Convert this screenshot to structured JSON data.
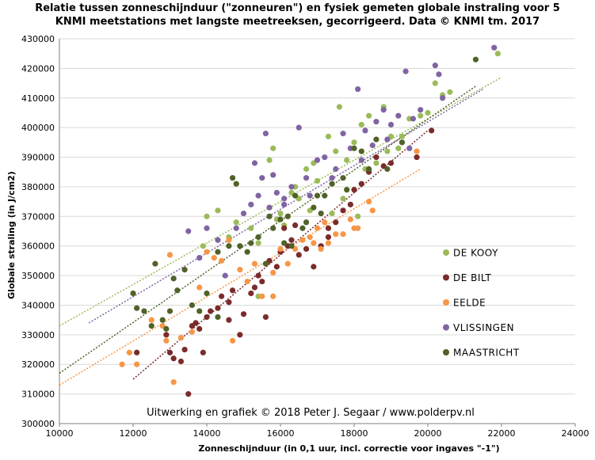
{
  "chart_data": {
    "type": "scatter",
    "title_line1": "Relatie  tussen  zonneschijnduur  (\"zonneuren\")  en fysiek gemeten globale instraling voor 5",
    "title_line2": "KNMI  meetstations met langste meetreeksen, gecorrigeerd. Data © KNMI  tm. 2017",
    "xlabel": "Zonneschijnduur (in 0,1 uur, incl. correctie voor ingaves \"-1\")",
    "ylabel": "Globale straling (in J/cm2)",
    "xlim": [
      10000,
      24000
    ],
    "ylim": [
      300000,
      430000
    ],
    "xticks": [
      10000,
      12000,
      14000,
      16000,
      18000,
      20000,
      22000,
      24000
    ],
    "yticks": [
      300000,
      310000,
      320000,
      330000,
      340000,
      350000,
      360000,
      370000,
      380000,
      390000,
      400000,
      410000,
      420000,
      430000
    ],
    "grid": "horizontal",
    "legend_position": "right",
    "credit": "Uitwerking  en grafiek © 2018 Peter J. Segaar / www.polderpv.nl",
    "series": [
      {
        "name": "DE KOOY",
        "color": "#9bbb59",
        "trend": [
          [
            10000,
            333000
          ],
          [
            22000,
            417000
          ]
        ],
        "points": [
          [
            13900,
            360000
          ],
          [
            14000,
            370000
          ],
          [
            14300,
            372000
          ],
          [
            14600,
            363000
          ],
          [
            14800,
            368000
          ],
          [
            15200,
            366000
          ],
          [
            15400,
            361000
          ],
          [
            15700,
            389000
          ],
          [
            15800,
            393000
          ],
          [
            15900,
            369000
          ],
          [
            16000,
            371000
          ],
          [
            16100,
            367000
          ],
          [
            16300,
            378000
          ],
          [
            16400,
            380000
          ],
          [
            16500,
            376000
          ],
          [
            16700,
            386000
          ],
          [
            16900,
            388000
          ],
          [
            17000,
            382000
          ],
          [
            17300,
            397000
          ],
          [
            17500,
            392000
          ],
          [
            17700,
            376000
          ],
          [
            17800,
            389000
          ],
          [
            18000,
            395000
          ],
          [
            18200,
            401000
          ],
          [
            18400,
            404000
          ],
          [
            18600,
            388000
          ],
          [
            18800,
            407000
          ],
          [
            19000,
            397000
          ],
          [
            19200,
            393000
          ],
          [
            19500,
            403000
          ],
          [
            19800,
            404000
          ],
          [
            20000,
            405000
          ],
          [
            20200,
            415000
          ],
          [
            20400,
            411000
          ],
          [
            21900,
            425000
          ],
          [
            17600,
            407000
          ],
          [
            18300,
            386000
          ],
          [
            18900,
            392000
          ],
          [
            15400,
            343000
          ],
          [
            16800,
            372000
          ],
          [
            17400,
            371000
          ],
          [
            18100,
            370000
          ],
          [
            19300,
            397000
          ],
          [
            20600,
            412000
          ]
        ]
      },
      {
        "name": "DE BILT",
        "color": "#7b2b2b",
        "trend": [
          [
            12000,
            315000
          ],
          [
            20000,
            399000
          ]
        ],
        "points": [
          [
            12100,
            324000
          ],
          [
            12900,
            330000
          ],
          [
            13000,
            324000
          ],
          [
            13100,
            322000
          ],
          [
            13300,
            321000
          ],
          [
            13400,
            325000
          ],
          [
            13500,
            310000
          ],
          [
            13600,
            333000
          ],
          [
            13700,
            334000
          ],
          [
            13800,
            332000
          ],
          [
            13900,
            324000
          ],
          [
            14000,
            336000
          ],
          [
            14100,
            338000
          ],
          [
            14300,
            339000
          ],
          [
            14400,
            343000
          ],
          [
            14600,
            341000
          ],
          [
            14700,
            345000
          ],
          [
            14900,
            330000
          ],
          [
            15000,
            337000
          ],
          [
            15200,
            344000
          ],
          [
            15300,
            346000
          ],
          [
            15400,
            350000
          ],
          [
            15500,
            348000
          ],
          [
            15700,
            355000
          ],
          [
            15900,
            353000
          ],
          [
            16000,
            358000
          ],
          [
            16100,
            366000
          ],
          [
            16200,
            360000
          ],
          [
            16300,
            362000
          ],
          [
            16500,
            357000
          ],
          [
            16700,
            359000
          ],
          [
            16900,
            353000
          ],
          [
            17100,
            360000
          ],
          [
            17300,
            363000
          ],
          [
            17500,
            368000
          ],
          [
            17700,
            372000
          ],
          [
            17900,
            374000
          ],
          [
            18000,
            379000
          ],
          [
            18200,
            381000
          ],
          [
            18400,
            385000
          ],
          [
            18600,
            390000
          ],
          [
            18800,
            387000
          ],
          [
            19000,
            388000
          ],
          [
            19700,
            390000
          ],
          [
            20100,
            399000
          ],
          [
            14600,
            335000
          ],
          [
            15600,
            336000
          ],
          [
            16400,
            367000
          ],
          [
            17300,
            366000
          ]
        ]
      },
      {
        "name": "EELDE",
        "color": "#f79646",
        "trend": [
          [
            10000,
            313000
          ],
          [
            19800,
            386000
          ]
        ],
        "points": [
          [
            11700,
            320000
          ],
          [
            11900,
            324000
          ],
          [
            12100,
            320000
          ],
          [
            12500,
            335000
          ],
          [
            12800,
            333000
          ],
          [
            12900,
            328000
          ],
          [
            13000,
            357000
          ],
          [
            13100,
            314000
          ],
          [
            13300,
            329000
          ],
          [
            13600,
            331000
          ],
          [
            13800,
            346000
          ],
          [
            14000,
            358000
          ],
          [
            14200,
            356000
          ],
          [
            14400,
            355000
          ],
          [
            14600,
            362000
          ],
          [
            14700,
            328000
          ],
          [
            14900,
            352000
          ],
          [
            15100,
            348000
          ],
          [
            15300,
            354000
          ],
          [
            15500,
            343000
          ],
          [
            15600,
            354000
          ],
          [
            15800,
            351000
          ],
          [
            16000,
            359000
          ],
          [
            16200,
            354000
          ],
          [
            16400,
            359000
          ],
          [
            16600,
            362000
          ],
          [
            16800,
            363000
          ],
          [
            17000,
            366000
          ],
          [
            17100,
            359000
          ],
          [
            17300,
            361000
          ],
          [
            17500,
            364000
          ],
          [
            17700,
            364000
          ],
          [
            17900,
            369000
          ],
          [
            18100,
            366000
          ],
          [
            18400,
            375000
          ],
          [
            19700,
            392000
          ],
          [
            15800,
            343000
          ],
          [
            16900,
            361000
          ],
          [
            17200,
            368000
          ],
          [
            18000,
            366000
          ],
          [
            18500,
            372000
          ]
        ]
      },
      {
        "name": "VLISSINGEN",
        "color": "#8064a2",
        "trend": [
          [
            10800,
            334000
          ],
          [
            21500,
            413000
          ]
        ],
        "points": [
          [
            13500,
            365000
          ],
          [
            13800,
            356000
          ],
          [
            14000,
            366000
          ],
          [
            14300,
            362000
          ],
          [
            14500,
            350000
          ],
          [
            14800,
            366000
          ],
          [
            15000,
            371000
          ],
          [
            15200,
            374000
          ],
          [
            15400,
            377000
          ],
          [
            15500,
            383000
          ],
          [
            15600,
            398000
          ],
          [
            15700,
            373000
          ],
          [
            15800,
            384000
          ],
          [
            15900,
            378000
          ],
          [
            16100,
            376000
          ],
          [
            16300,
            380000
          ],
          [
            16500,
            400000
          ],
          [
            16700,
            383000
          ],
          [
            16800,
            377000
          ],
          [
            17000,
            389000
          ],
          [
            17200,
            390000
          ],
          [
            17400,
            383000
          ],
          [
            17500,
            386000
          ],
          [
            17700,
            398000
          ],
          [
            17900,
            393000
          ],
          [
            18100,
            413000
          ],
          [
            18300,
            399000
          ],
          [
            18500,
            394000
          ],
          [
            18600,
            402000
          ],
          [
            18800,
            406000
          ],
          [
            19000,
            401000
          ],
          [
            19200,
            404000
          ],
          [
            19400,
            419000
          ],
          [
            19600,
            403000
          ],
          [
            19800,
            406000
          ],
          [
            20200,
            421000
          ],
          [
            20300,
            418000
          ],
          [
            20400,
            410000
          ],
          [
            21800,
            427000
          ],
          [
            18200,
            389000
          ],
          [
            18900,
            396000
          ],
          [
            19500,
            393000
          ],
          [
            15300,
            388000
          ],
          [
            16100,
            374000
          ]
        ]
      },
      {
        "name": "MAASTRICHT",
        "color": "#4f6228",
        "trend": [
          [
            10000,
            317000
          ],
          [
            21300,
            414000
          ]
        ],
        "points": [
          [
            12000,
            344000
          ],
          [
            12100,
            339000
          ],
          [
            12300,
            338000
          ],
          [
            12500,
            333000
          ],
          [
            12600,
            354000
          ],
          [
            12800,
            335000
          ],
          [
            12900,
            332000
          ],
          [
            13000,
            338000
          ],
          [
            13100,
            349000
          ],
          [
            13400,
            352000
          ],
          [
            13600,
            340000
          ],
          [
            13800,
            338000
          ],
          [
            14000,
            344000
          ],
          [
            14300,
            358000
          ],
          [
            14600,
            360000
          ],
          [
            14700,
            383000
          ],
          [
            14800,
            381000
          ],
          [
            14900,
            360000
          ],
          [
            15200,
            361000
          ],
          [
            15400,
            363000
          ],
          [
            15600,
            354000
          ],
          [
            15700,
            370000
          ],
          [
            15800,
            366000
          ],
          [
            16000,
            369000
          ],
          [
            16100,
            361000
          ],
          [
            16200,
            370000
          ],
          [
            16400,
            377000
          ],
          [
            16600,
            366000
          ],
          [
            16700,
            368000
          ],
          [
            16900,
            373000
          ],
          [
            17000,
            377000
          ],
          [
            17200,
            377000
          ],
          [
            17400,
            381000
          ],
          [
            17700,
            383000
          ],
          [
            18000,
            393000
          ],
          [
            18200,
            392000
          ],
          [
            18400,
            386000
          ],
          [
            18600,
            396000
          ],
          [
            18900,
            386000
          ],
          [
            19300,
            395000
          ],
          [
            21300,
            423000
          ],
          [
            13200,
            345000
          ],
          [
            14300,
            336000
          ],
          [
            15100,
            358000
          ],
          [
            16300,
            360000
          ],
          [
            17100,
            371000
          ],
          [
            17800,
            379000
          ]
        ]
      }
    ]
  }
}
